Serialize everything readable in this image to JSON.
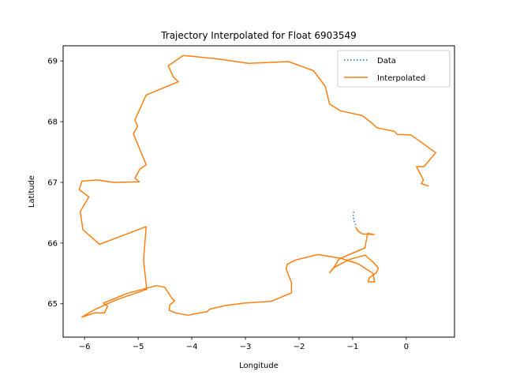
{
  "chart_data": {
    "type": "line",
    "title": "Trajectory Interpolated for Float 6903549",
    "xlabel": "Longitude",
    "ylabel": "Latitude",
    "xlim": [
      -6.4,
      0.9
    ],
    "ylim": [
      64.45,
      69.25
    ],
    "xticks": [
      -6,
      -5,
      -4,
      -3,
      -2,
      -1,
      0
    ],
    "xtick_labels": [
      "−6",
      "−5",
      "−4",
      "−3",
      "−2",
      "−1",
      "0"
    ],
    "yticks": [
      65,
      66,
      67,
      68,
      69
    ],
    "ytick_labels": [
      "65",
      "66",
      "67",
      "68",
      "69"
    ],
    "grid": false,
    "legend_position": "top-right",
    "series": [
      {
        "name": "Data",
        "color": "#1f77b4",
        "style": "dotted",
        "x": [
          -0.98,
          -0.99,
          -0.97,
          -0.94
        ],
        "y": [
          66.52,
          66.44,
          66.36,
          66.3
        ]
      },
      {
        "name": "Interpolated",
        "color": "#ff7f0e",
        "style": "solid",
        "x": [
          -0.94,
          -0.9,
          -0.82,
          -0.6,
          -0.72,
          -0.77,
          -1.12,
          -1.26,
          -1.35,
          -1.43,
          -1.34,
          -1.06,
          -0.77,
          -0.62,
          -0.52,
          -0.56,
          -0.69,
          -0.71,
          -0.59,
          -0.62,
          -0.9,
          -1.22,
          -1.65,
          -2.07,
          -2.22,
          -2.24,
          -2.14,
          -2.14,
          -2.52,
          -3.02,
          -3.38,
          -3.67,
          -3.71,
          -3.78,
          -3.97,
          -4.07,
          -4.3,
          -4.42,
          -4.41,
          -4.32,
          -4.38,
          -4.5,
          -4.66,
          -5.21,
          -5.65,
          -5.57,
          -5.63,
          -5.81,
          -6.05,
          -5.82,
          -5.42,
          -4.84,
          -4.9,
          -4.85,
          -5.72,
          -6.03,
          -6.08,
          -5.92,
          -6.1,
          -6.05,
          -5.76,
          -5.46,
          -4.98,
          -5.06,
          -4.97,
          -4.85,
          -5.09,
          -5.01,
          -5.06,
          -4.85,
          -4.25,
          -4.34,
          -4.44,
          -4.16,
          -3.92,
          -3.7,
          -3.57,
          -2.94,
          -2.2,
          -1.73,
          -1.51,
          -1.43,
          -1.23,
          -0.82,
          -0.63,
          -0.55,
          -0.22,
          -0.17,
          0.09,
          0.55,
          0.33,
          0.19,
          0.32,
          0.28,
          0.41
        ],
        "y": [
          66.26,
          66.2,
          66.15,
          66.14,
          66.16,
          65.92,
          65.79,
          65.73,
          65.6,
          65.51,
          65.6,
          65.73,
          65.8,
          65.69,
          65.59,
          65.51,
          65.43,
          65.36,
          65.36,
          65.5,
          65.66,
          65.75,
          65.81,
          65.72,
          65.65,
          65.57,
          65.35,
          65.18,
          65.04,
          65.01,
          64.97,
          64.91,
          64.87,
          64.86,
          64.83,
          64.81,
          64.85,
          64.89,
          64.98,
          65.05,
          65.1,
          65.27,
          65.3,
          65.17,
          65.01,
          64.96,
          64.85,
          64.85,
          64.78,
          64.9,
          65.06,
          65.24,
          65.72,
          66.27,
          65.98,
          66.22,
          66.52,
          66.76,
          66.88,
          67.02,
          67.04,
          67.0,
          67.01,
          67.07,
          67.22,
          67.29,
          67.8,
          67.92,
          68.03,
          68.44,
          68.66,
          68.73,
          68.92,
          69.09,
          69.07,
          69.05,
          69.04,
          68.96,
          68.99,
          68.84,
          68.58,
          68.29,
          68.18,
          68.1,
          67.97,
          67.9,
          67.84,
          67.79,
          67.78,
          67.49,
          67.26,
          67.26,
          67.04,
          66.98,
          66.94
        ]
      }
    ]
  }
}
